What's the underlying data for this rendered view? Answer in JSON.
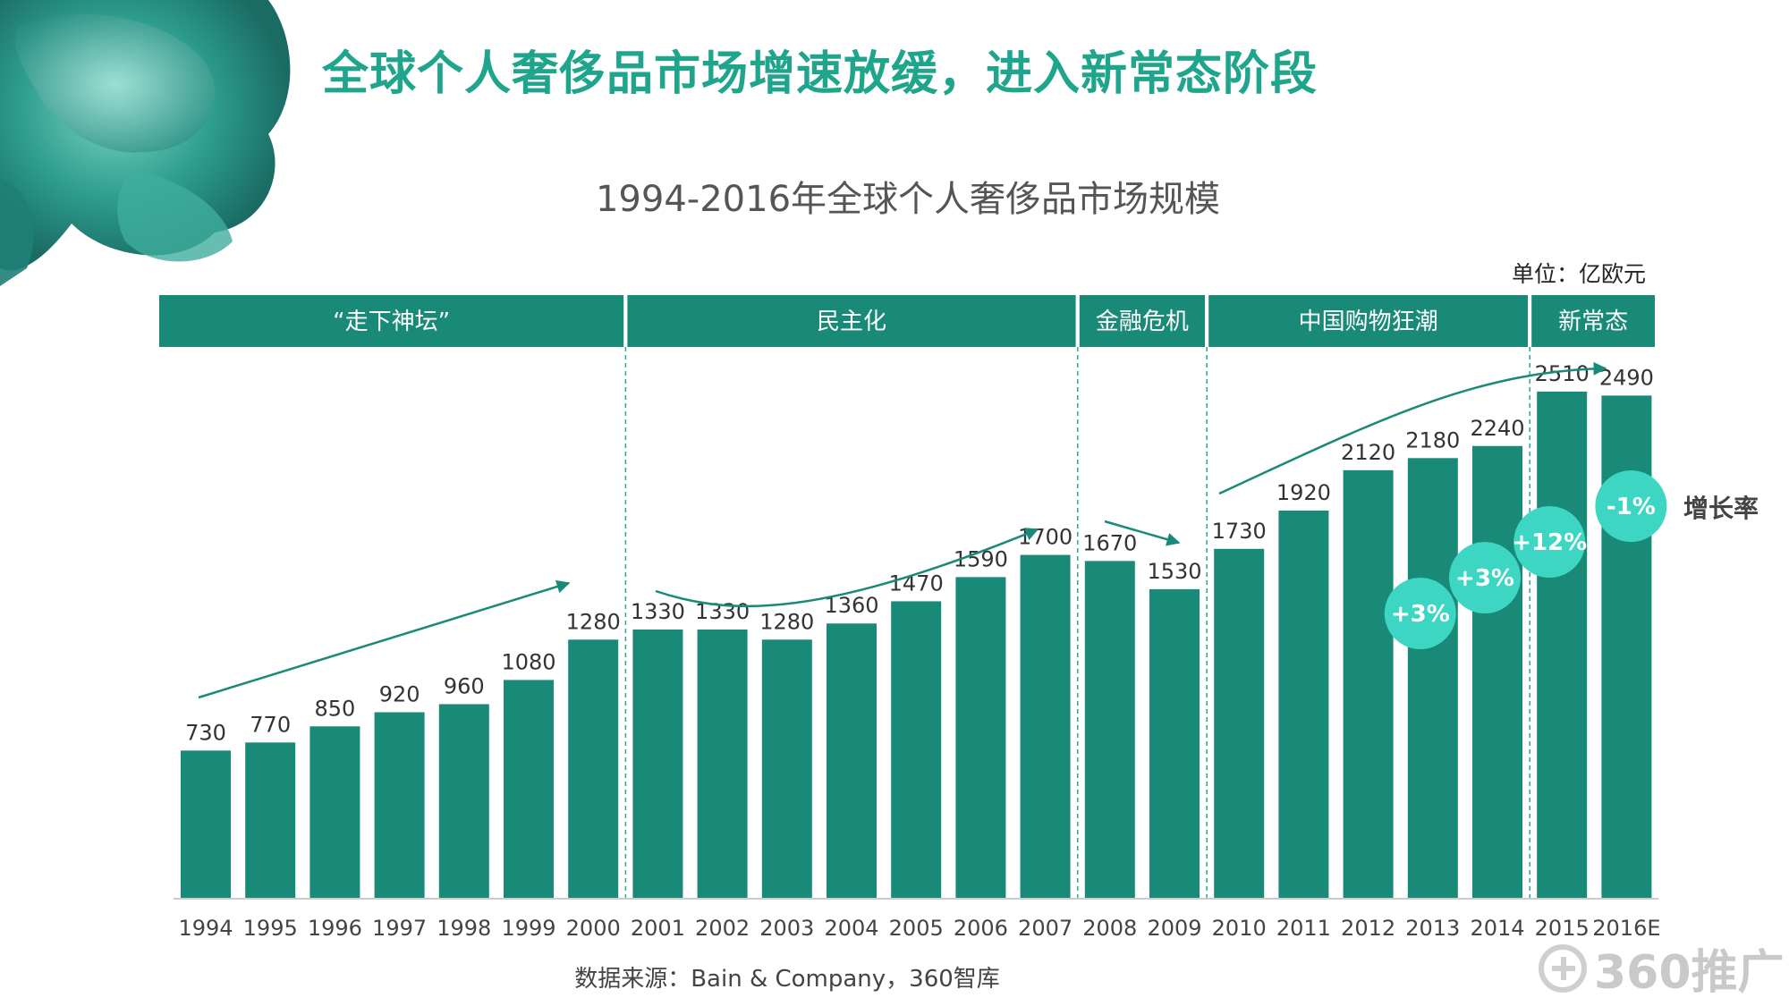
{
  "slide": {
    "title": "全球个人奢侈品市场增速放缓，进入新常态阶段",
    "unit": "单位：亿欧元",
    "source": "数据来源：Bain & Company，360智库",
    "brand": "360推广",
    "accent_color": "#1a8a78",
    "title_color": "#1fa58c",
    "badge_color": "#3dd6c3"
  },
  "chart_data": {
    "type": "bar",
    "title": "1994-2016年全球个人奢侈品市场规模",
    "categories": [
      "1994",
      "1995",
      "1996",
      "1997",
      "1998",
      "1999",
      "2000",
      "2001",
      "2002",
      "2003",
      "2004",
      "2005",
      "2006",
      "2007",
      "2008",
      "2009",
      "2010",
      "2011",
      "2012",
      "2013",
      "2014",
      "2015",
      "2016E"
    ],
    "values": [
      730,
      770,
      850,
      920,
      960,
      1080,
      1280,
      1330,
      1330,
      1280,
      1360,
      1470,
      1590,
      1700,
      1670,
      1530,
      1730,
      1920,
      2120,
      2180,
      2240,
      2510,
      2490
    ],
    "ylim": [
      0,
      2700
    ],
    "grid": false,
    "legend": "none",
    "phases": [
      {
        "label": "“走下神坛”",
        "start": "1994",
        "end": "2000"
      },
      {
        "label": "民主化",
        "start": "2001",
        "end": "2007"
      },
      {
        "label": "金融危机",
        "start": "2008",
        "end": "2009"
      },
      {
        "label": "中国购物狂潮",
        "start": "2010",
        "end": "2014"
      },
      {
        "label": "新常态",
        "start": "2015",
        "end": "2016E"
      }
    ],
    "growth_label": "增长率",
    "growth_rates": [
      {
        "category": "2013",
        "label": "+3%"
      },
      {
        "category": "2014",
        "label": "+3%"
      },
      {
        "category": "2015",
        "label": "+12%"
      },
      {
        "category": "2016E",
        "label": "-1%"
      }
    ]
  }
}
